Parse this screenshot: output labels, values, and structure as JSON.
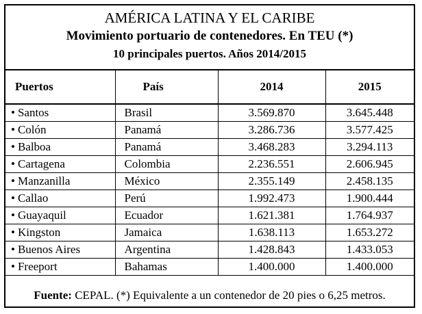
{
  "title": {
    "line1": "AMÉRICA LATINA Y EL CARIBE",
    "line2": "Movimiento portuario  de contenedores. En TEU (*)",
    "line3": "10 principales puertos. Años 2014/2015"
  },
  "table": {
    "headers": [
      "Puertos",
      "País",
      "2014",
      "2015"
    ],
    "bullet": "•",
    "rows": [
      {
        "port": "Santos",
        "country": "Brasil",
        "y2014": "3.569.870",
        "y2015": "3.645.448"
      },
      {
        "port": "Colón",
        "country": "Panamá",
        "y2014": "3.286.736",
        "y2015": "3.577.425"
      },
      {
        "port": "Balboa",
        "country": "Panamá",
        "y2014": "3.468.283",
        "y2015": "3.294.113"
      },
      {
        "port": "Cartagena",
        "country": "Colombia",
        "y2014": "2.236.551",
        "y2015": "2.606.945"
      },
      {
        "port": "Manzanilla",
        "country": "México",
        "y2014": "2.355.149",
        "y2015": "2.458.135"
      },
      {
        "port": "Callao",
        "country": "Perú",
        "y2014": "1.992.473",
        "y2015": "1.900.444"
      },
      {
        "port": "Guayaquil",
        "country": "Ecuador",
        "y2014": "1.621.381",
        "y2015": "1.764.937"
      },
      {
        "port": "Kingston",
        "country": "Jamaica",
        "y2014": "1.638.113",
        "y2015": "1.653.272"
      },
      {
        "port": "Buenos Aires",
        "country": "Argentina",
        "y2014": "1.428.843",
        "y2015": "1.433.053"
      },
      {
        "port": "Freeport",
        "country": "Bahamas",
        "y2014": "1.400.000",
        "y2015": "1.400.000"
      }
    ]
  },
  "footer": {
    "label": "Fuente:",
    "text": " CEPAL. (*) Equivalente a un contenedor de 20 pies o 6,25 metros."
  }
}
